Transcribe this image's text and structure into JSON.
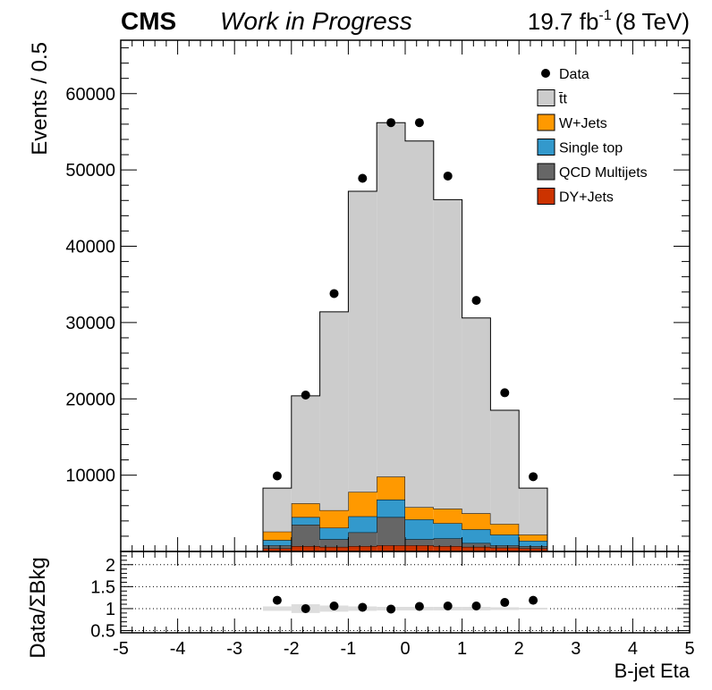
{
  "header": {
    "experiment": "CMS",
    "status": "Work in Progress",
    "lumi_value": "19.7 fb",
    "lumi_exponent": "-1",
    "energy": "(8 TeV)"
  },
  "chart_data": [
    {
      "type": "bar",
      "stacked": true,
      "xlabel": "B-jet Eta",
      "ylabel": "Events / 0.5",
      "xlim": [
        -5,
        5
      ],
      "ylim": [
        0,
        67000
      ],
      "bin_edges": [
        -2.5,
        -2.0,
        -1.5,
        -1.0,
        -0.5,
        0.0,
        0.5,
        1.0,
        1.5,
        2.0,
        2.5
      ],
      "y_ticks": [
        10000,
        20000,
        30000,
        40000,
        50000,
        60000
      ],
      "y_tick_labels": [
        "10000",
        "20000",
        "30000",
        "40000",
        "50000",
        "60000"
      ],
      "legend_position": "top-right",
      "series": [
        {
          "name": "DY+Jets",
          "color": "#cc3300",
          "values": [
            400,
            700,
            600,
            700,
            800,
            800,
            700,
            600,
            500,
            400
          ]
        },
        {
          "name": "QCD Multijets",
          "color": "#666666",
          "values": [
            400,
            2800,
            1000,
            1800,
            3700,
            800,
            1000,
            500,
            300,
            300
          ]
        },
        {
          "name": "Single top",
          "color": "#3399cc",
          "values": [
            700,
            1000,
            1500,
            2100,
            2300,
            2600,
            2000,
            1800,
            1400,
            700
          ]
        },
        {
          "name": "W+Jets",
          "color": "#ff9900",
          "values": [
            1100,
            1800,
            2300,
            3200,
            3000,
            1600,
            1900,
            2100,
            1400,
            800
          ]
        },
        {
          "name": "t̄t",
          "color": "#cccccc",
          "values": [
            5700,
            14100,
            26000,
            39400,
            46400,
            48000,
            40500,
            25600,
            14900,
            6100
          ]
        }
      ],
      "data_points": {
        "name": "Data",
        "x": [
          -2.25,
          -1.75,
          -1.25,
          -0.75,
          -0.25,
          0.25,
          0.75,
          1.25,
          1.75,
          2.25
        ],
        "y": [
          9900,
          20500,
          33800,
          48900,
          56200,
          56200,
          49200,
          32900,
          20800,
          9800
        ]
      },
      "legend_entries": [
        {
          "label": "Data",
          "marker": "point"
        },
        {
          "label": "t̄t",
          "color": "#cccccc"
        },
        {
          "label": "W+Jets",
          "color": "#ff9900"
        },
        {
          "label": "Single top",
          "color": "#3399cc"
        },
        {
          "label": "QCD Multijets",
          "color": "#666666"
        },
        {
          "label": "DY+Jets",
          "color": "#cc3300"
        }
      ]
    },
    {
      "type": "scatter",
      "xlabel": "B-jet Eta",
      "ylabel": "Data/ΣBkg",
      "xlim": [
        -5,
        5
      ],
      "ylim": [
        0.45,
        2.3
      ],
      "y_ticks": [
        0.5,
        1,
        1.5,
        2
      ],
      "y_tick_labels": [
        "0.5",
        "1",
        "1.5",
        "2"
      ],
      "x_ticks": [
        -5,
        -4,
        -3,
        -2,
        -1,
        0,
        1,
        2,
        3,
        4,
        5
      ],
      "x_tick_labels": [
        "-5",
        "-4",
        "-3",
        "-2",
        "-1",
        "0",
        "1",
        "2",
        "3",
        "4",
        "5"
      ],
      "reference_lines": [
        0.5,
        1,
        1.5,
        2
      ],
      "x": [
        -2.25,
        -1.75,
        -1.25,
        -0.75,
        -0.25,
        0.25,
        0.75,
        1.25,
        1.75,
        2.25
      ],
      "y": [
        1.19,
        1.0,
        1.06,
        1.03,
        0.99,
        1.05,
        1.06,
        1.06,
        1.14,
        1.19
      ],
      "y_err": [
        0.02,
        0.08,
        0.02,
        0.02,
        0.02,
        0.02,
        0.02,
        0.02,
        0.02,
        0.02
      ],
      "band_half_width": [
        0.05,
        0.1,
        0.07,
        0.05,
        0.04,
        0.04,
        0.04,
        0.04,
        0.03,
        0.02
      ]
    }
  ]
}
